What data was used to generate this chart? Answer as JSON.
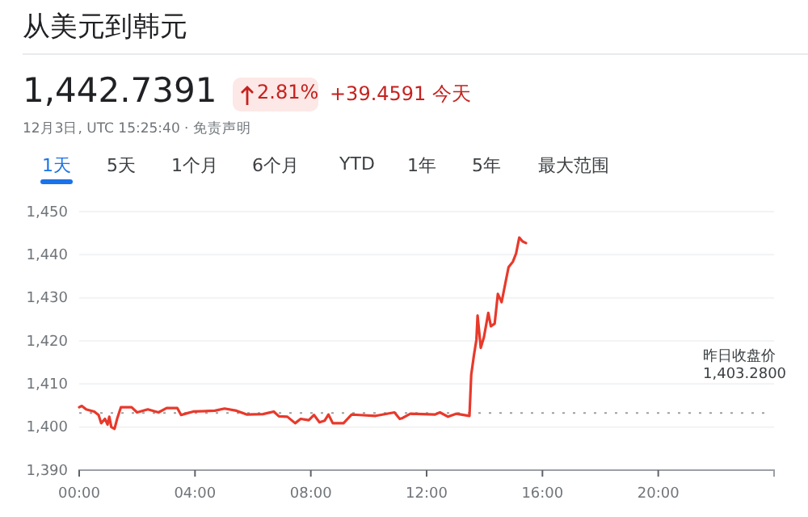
{
  "chart_data": {
    "type": "line",
    "title": "从美元到韩元",
    "annotations": [
      "1,442.7391",
      "2.81%",
      "+39.4591 今天",
      "12月3日, UTC 15:25:40 · 免责声明",
      "1天",
      "5天",
      "1个月",
      "6个月",
      "YTD",
      "1年",
      "5年",
      "最大范围"
    ],
    "x": [
      0,
      0.09,
      0.24,
      0.52,
      0.67,
      0.76,
      0.89,
      0.98,
      1.04,
      1.11,
      1.22,
      1.31,
      1.44,
      1.81,
      2.0,
      2.37,
      2.74,
      3.02,
      3.39,
      3.52,
      3.67,
      3.94,
      4.69,
      5.02,
      5.43,
      5.8,
      6.35,
      6.72,
      6.9,
      7.19,
      7.46,
      7.65,
      7.93,
      8.11,
      8.3,
      8.48,
      8.61,
      8.76,
      9.13,
      9.41,
      9.69,
      10.24,
      10.89,
      11.07,
      11.17,
      11.44,
      12.28,
      12.46,
      12.74,
      13.02,
      13.48,
      13.54,
      13.63,
      13.72,
      13.76,
      13.87,
      13.98,
      14.13,
      14.22,
      14.35,
      14.46,
      14.59,
      14.72,
      14.83,
      14.98,
      15.09,
      15.2,
      15.31,
      15.43
    ],
    "series": [
      {
        "color": "#e8392b",
        "values": [
          1404.6,
          1404.9,
          1404.1,
          1403.6,
          1402.8,
          1400.9,
          1401.9,
          1400.6,
          1402.4,
          1400,
          1399.6,
          1401.9,
          1404.6,
          1404.6,
          1403.4,
          1404.1,
          1403.4,
          1404.4,
          1404.4,
          1402.8,
          1403.1,
          1403.6,
          1403.8,
          1404.3,
          1403.8,
          1402.9,
          1403,
          1403.6,
          1402.5,
          1402.4,
          1400.9,
          1401.9,
          1401.6,
          1402.8,
          1401.1,
          1401.5,
          1402.9,
          1400.9,
          1400.9,
          1402.9,
          1402.8,
          1402.6,
          1403.4,
          1401.9,
          1402.1,
          1403.1,
          1402.9,
          1403.4,
          1402.4,
          1403.1,
          1402.6,
          1412.1,
          1416.5,
          1420.3,
          1425.9,
          1418.4,
          1420.9,
          1426.5,
          1423.4,
          1424,
          1430.9,
          1429,
          1433.4,
          1437.1,
          1438.4,
          1440.3,
          1444,
          1443.1,
          1442.7
        ]
      }
    ],
    "xlim": [
      0,
      24
    ],
    "xticks": [
      {
        "value": 0,
        "label": "00:00"
      },
      {
        "value": 4,
        "label": "04:00"
      },
      {
        "value": 8,
        "label": "08:00"
      },
      {
        "value": 12,
        "label": "12:00"
      },
      {
        "value": 16,
        "label": "16:00"
      },
      {
        "value": 20,
        "label": "20:00"
      }
    ],
    "ylim": [
      1390,
      1450
    ],
    "yticks": [
      {
        "value": 1390,
        "label": "1,390"
      },
      {
        "value": 1400,
        "label": "1,400"
      },
      {
        "value": 1410,
        "label": "1,410"
      },
      {
        "value": 1420,
        "label": "1,420"
      },
      {
        "value": 1430,
        "label": "1,430"
      },
      {
        "value": 1440,
        "label": "1,440"
      },
      {
        "value": 1450,
        "label": "1,450"
      }
    ],
    "grid": "y",
    "ref_lines": [
      {
        "axis": "y",
        "value": 1403.28,
        "label": "昨日收盘价 1,403.2800",
        "line_style": "dotted",
        "color": "#9e9e9e"
      }
    ]
  }
}
